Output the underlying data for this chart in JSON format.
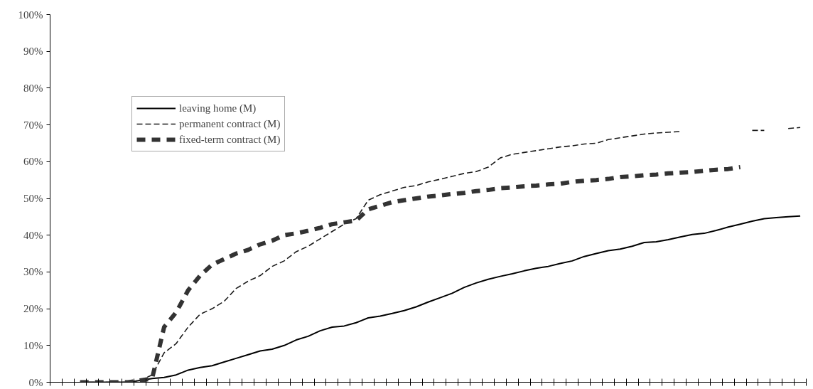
{
  "chart_data": {
    "type": "line",
    "categories": [
      null,
      null,
      null,
      null,
      null,
      null,
      null,
      null,
      null,
      null,
      null,
      null,
      null,
      null,
      null,
      null,
      null,
      null,
      null,
      null,
      null,
      null,
      null,
      null,
      null,
      null,
      null,
      null,
      null,
      null,
      null,
      null,
      null,
      null,
      null,
      null,
      null,
      null,
      null,
      null,
      null,
      null,
      null,
      null,
      null,
      null,
      null,
      null,
      null,
      null,
      null,
      null,
      null,
      null,
      null,
      null,
      null,
      null,
      null,
      null,
      null,
      null,
      null
    ],
    "series": [
      {
        "name": "leaving home (M)",
        "color": "#000000",
        "line_style": "solid",
        "values": [
          null,
          null,
          0,
          0,
          0,
          0,
          0,
          0.5,
          1,
          1.3,
          2,
          3.3,
          4,
          4.5,
          5.5,
          6.5,
          7.5,
          8.5,
          9,
          10,
          11.5,
          12.5,
          14,
          15,
          15.3,
          16.2,
          17.5,
          18,
          18.7,
          19.5,
          20.5,
          21.8,
          23,
          24.2,
          25.8,
          27,
          28,
          28.8,
          29.5,
          30.3,
          31,
          31.5,
          32.3,
          33,
          34.2,
          35,
          35.8,
          36.2,
          37,
          38,
          38.2,
          38.8,
          39.5,
          40.2,
          40.5,
          41.3,
          42.2,
          43,
          43.8,
          44.5,
          44.8,
          45,
          45.2
        ]
      },
      {
        "name": "permanent contract (M)",
        "color": "#1a1a1a",
        "line_style": "dashed",
        "values": [
          null,
          null,
          0,
          0,
          0,
          0,
          0,
          0.5,
          2,
          8,
          10.5,
          15,
          18.5,
          20,
          22,
          25.5,
          27.5,
          29,
          31.5,
          33,
          35.5,
          37,
          39,
          41,
          43,
          44.5,
          49.5,
          51,
          52,
          53,
          53.5,
          54.5,
          55.2,
          56,
          56.8,
          57.3,
          58.5,
          61,
          62,
          62.5,
          63,
          63.5,
          64,
          64.3,
          64.8,
          65,
          66,
          66.5,
          67,
          67.5,
          67.8,
          68,
          68.2,
          null,
          null,
          null,
          null,
          null,
          68.5,
          68.5,
          null,
          69,
          69.3
        ]
      },
      {
        "name": "fixed-term contract (M)",
        "color": "#333333",
        "line_style": "dotted",
        "values": [
          null,
          null,
          0,
          0,
          0,
          0,
          0,
          0.5,
          1,
          15,
          19,
          25,
          29,
          32,
          33.5,
          35,
          36,
          37.5,
          38.5,
          40,
          40.5,
          41.2,
          42,
          43,
          43.5,
          44,
          47,
          48,
          49,
          49.5,
          50,
          50.5,
          50.8,
          51.2,
          51.5,
          52,
          52.3,
          52.8,
          53,
          53.3,
          53.5,
          53.8,
          54,
          54.5,
          54.8,
          55,
          55.3,
          55.8,
          56,
          56.3,
          56.5,
          56.8,
          57,
          57.2,
          57.5,
          57.8,
          58,
          58.5,
          null,
          null,
          null,
          null,
          null
        ]
      }
    ],
    "ylim": [
      0,
      100
    ],
    "yticks": [
      {
        "value": 0,
        "label": "0%"
      },
      {
        "value": 10,
        "label": "10%"
      },
      {
        "value": 20,
        "label": "20%"
      },
      {
        "value": 30,
        "label": "30%"
      },
      {
        "value": 40,
        "label": "40%"
      },
      {
        "value": 50,
        "label": "50%"
      },
      {
        "value": 60,
        "label": "60%"
      },
      {
        "value": 70,
        "label": "70%"
      },
      {
        "value": 80,
        "label": "80%"
      },
      {
        "value": 90,
        "label": "90%"
      },
      {
        "value": 100,
        "label": "100%"
      }
    ],
    "tick_labels": "y",
    "grid": false,
    "legend": "top left"
  }
}
